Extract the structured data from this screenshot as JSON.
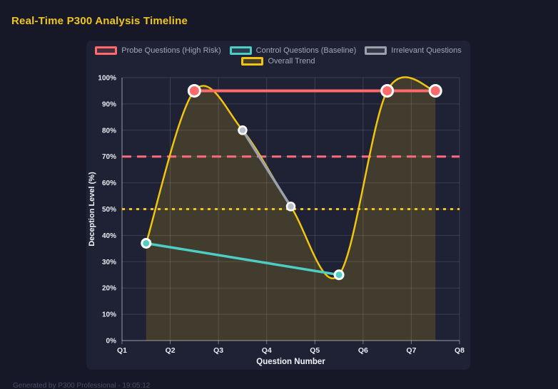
{
  "page": {
    "title": "Real-Time P300 Analysis Timeline",
    "footer": "Generated by P300 Professional - 19:05:12"
  },
  "colors": {
    "page_bg": "#161828",
    "panel_bg": "#1f2235",
    "title": "#f0c420",
    "grid": "rgba(255,255,255,0.13)",
    "axis": "rgba(255,255,255,0.38)",
    "tick_label": "#e8eaf2",
    "axis_title": "#f2f4fa",
    "legend_label": "#a2a6b6",
    "footer": "#494e63",
    "point_border": "#ffffff"
  },
  "legend": {
    "rows": [
      [
        0,
        1,
        2
      ],
      [
        3
      ]
    ]
  },
  "chart_data": {
    "type": "line",
    "title": "Real-Time P300 Analysis Timeline",
    "xlabel": "Question Number",
    "ylabel": "Deception Level (%)",
    "x_range": [
      1,
      8
    ],
    "y_range": [
      0,
      100
    ],
    "grid": true,
    "legend_position": "top",
    "x_ticks": [
      {
        "value": 1,
        "label": "Q1"
      },
      {
        "value": 2,
        "label": "Q2"
      },
      {
        "value": 3,
        "label": "Q3"
      },
      {
        "value": 4,
        "label": "Q4"
      },
      {
        "value": 5,
        "label": "Q5"
      },
      {
        "value": 6,
        "label": "Q6"
      },
      {
        "value": 7,
        "label": "Q7"
      },
      {
        "value": 8,
        "label": "Q8"
      }
    ],
    "y_ticks": [
      {
        "value": 0,
        "label": "0%"
      },
      {
        "value": 10,
        "label": "10%"
      },
      {
        "value": 20,
        "label": "20%"
      },
      {
        "value": 30,
        "label": "30%"
      },
      {
        "value": 40,
        "label": "40%"
      },
      {
        "value": 50,
        "label": "50%"
      },
      {
        "value": 60,
        "label": "60%"
      },
      {
        "value": 70,
        "label": "70%"
      },
      {
        "value": 80,
        "label": "80%"
      },
      {
        "value": 90,
        "label": "90%"
      },
      {
        "value": 100,
        "label": "100%"
      }
    ],
    "series": [
      {
        "name": "Probe Questions (High Risk)",
        "slug": "probe-questions",
        "color": "#ff6b6b",
        "x": [
          2.5,
          6.5,
          7.5
        ],
        "values": [
          95,
          95,
          95
        ],
        "line_width": 4,
        "point_radius": 8,
        "point_stroke_width": 3,
        "smooth": false
      },
      {
        "name": "Control Questions (Baseline)",
        "slug": "control-questions",
        "color": "#4ecdc4",
        "x": [
          1.5,
          5.5
        ],
        "values": [
          37,
          25
        ],
        "line_width": 3.5,
        "point_radius": 6,
        "point_stroke_width": 3,
        "smooth": false
      },
      {
        "name": "Irrelevant Questions",
        "slug": "irrelevant-questions",
        "color": "#9aa1ab",
        "point_fill": "#b9bfc7",
        "x": [
          3.5,
          4.5
        ],
        "values": [
          80,
          51
        ],
        "line_width": 3.5,
        "point_radius": 5.5,
        "point_stroke_width": 2.5,
        "smooth": false
      },
      {
        "name": "Overall Trend",
        "slug": "overall-trend",
        "color": "#f1c40f",
        "x": [
          1.5,
          2.5,
          3.5,
          4.5,
          5.5,
          6.5,
          7.5
        ],
        "values": [
          37,
          95,
          80,
          51,
          25,
          95,
          95
        ],
        "line_width": 2.5,
        "point_radius": 0,
        "point_stroke_width": 0,
        "smooth": true,
        "fill": "rgba(241,196,15,0.16)"
      }
    ],
    "thresholds": [
      {
        "value": 70,
        "color": "#ff6b7a",
        "dash": "13 8",
        "width": 3
      },
      {
        "value": 50,
        "color": "#f1c40f",
        "dash": "4 6",
        "width": 3
      }
    ]
  }
}
